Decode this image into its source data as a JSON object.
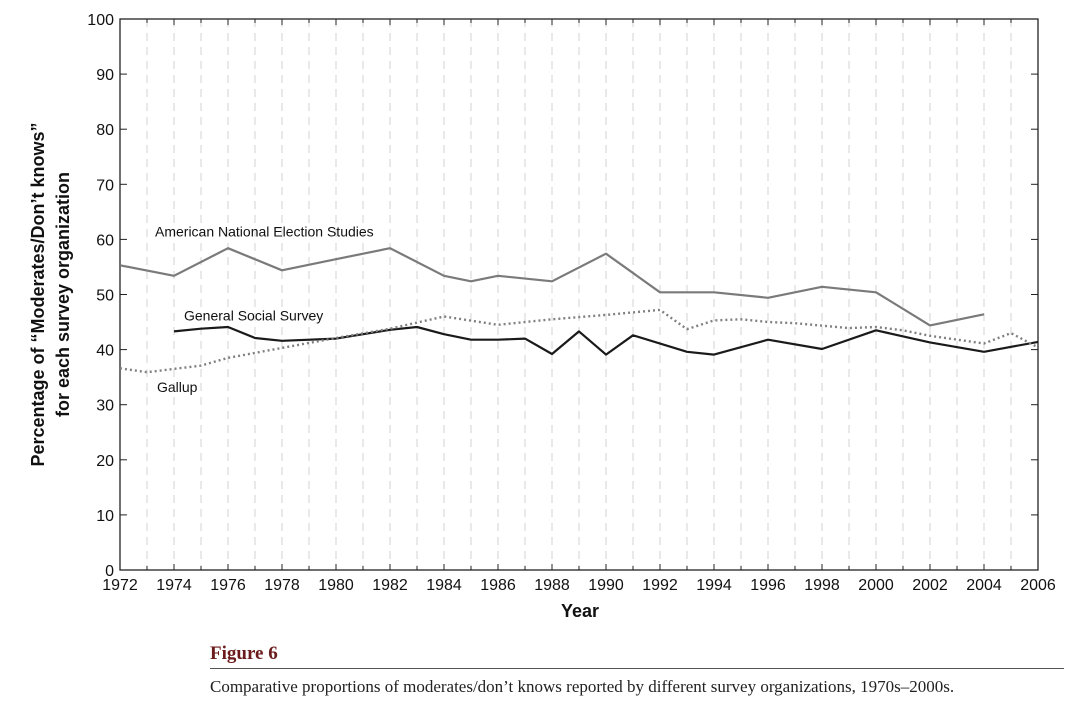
{
  "chart_data": {
    "type": "line",
    "xlabel": "Year",
    "ylabel_lines": [
      "Percentage of “Moderates/Don’t knows”",
      "for each survey organization"
    ],
    "xlim": [
      1972,
      2006
    ],
    "ylim": [
      0,
      100
    ],
    "x_ticks": [
      1972,
      1974,
      1976,
      1978,
      1980,
      1982,
      1984,
      1986,
      1988,
      1990,
      1992,
      1994,
      1996,
      1998,
      2000,
      2002,
      2004,
      2006
    ],
    "y_ticks": [
      0,
      10,
      20,
      30,
      40,
      50,
      60,
      70,
      80,
      90,
      100
    ],
    "grid": "vertical dashed at every year",
    "series": [
      {
        "name": "American National Election Studies",
        "color": "#7a7a7a",
        "style": "solid",
        "points": [
          [
            1972,
            55.3
          ],
          [
            1974,
            53.4
          ],
          [
            1976,
            58.4
          ],
          [
            1978,
            54.4
          ],
          [
            1980,
            56.4
          ],
          [
            1982,
            58.4
          ],
          [
            1984,
            53.4
          ],
          [
            1985,
            52.4
          ],
          [
            1986,
            53.4
          ],
          [
            1988,
            52.4
          ],
          [
            1990,
            57.4
          ],
          [
            1992,
            50.4
          ],
          [
            1994,
            50.4
          ],
          [
            1996,
            49.4
          ],
          [
            1998,
            51.4
          ],
          [
            2000,
            50.4
          ],
          [
            2002,
            44.4
          ],
          [
            2004,
            46.4
          ]
        ]
      },
      {
        "name": "General Social Survey",
        "color": "#1a1a1a",
        "style": "solid",
        "points": [
          [
            1974,
            43.3
          ],
          [
            1975,
            43.8
          ],
          [
            1976,
            44.1
          ],
          [
            1977,
            42.1
          ],
          [
            1978,
            41.6
          ],
          [
            1980,
            42.0
          ],
          [
            1982,
            43.6
          ],
          [
            1983,
            44.1
          ],
          [
            1984,
            42.8
          ],
          [
            1985,
            41.8
          ],
          [
            1986,
            41.8
          ],
          [
            1987,
            42.0
          ],
          [
            1988,
            39.2
          ],
          [
            1989,
            43.3
          ],
          [
            1990,
            39.1
          ],
          [
            1991,
            42.6
          ],
          [
            1993,
            39.6
          ],
          [
            1994,
            39.1
          ],
          [
            1996,
            41.8
          ],
          [
            1998,
            40.1
          ],
          [
            2000,
            43.5
          ],
          [
            2002,
            41.3
          ],
          [
            2004,
            39.6
          ],
          [
            2006,
            41.4
          ]
        ]
      },
      {
        "name": "Gallup",
        "color": "#808080",
        "style": "dotted",
        "points": [
          [
            1972,
            36.6
          ],
          [
            1973,
            35.9
          ],
          [
            1975,
            37.1
          ],
          [
            1976,
            38.5
          ],
          [
            1978,
            40.3
          ],
          [
            1980,
            42.1
          ],
          [
            1982,
            43.8
          ],
          [
            1984,
            46.0
          ],
          [
            1986,
            44.5
          ],
          [
            1988,
            45.5
          ],
          [
            1990,
            46.3
          ],
          [
            1992,
            47.2
          ],
          [
            1993,
            43.7
          ],
          [
            1994,
            45.3
          ],
          [
            1995,
            45.5
          ],
          [
            1996,
            45.0
          ],
          [
            1997,
            44.8
          ],
          [
            1999,
            43.9
          ],
          [
            2000,
            44.1
          ],
          [
            2001,
            43.5
          ],
          [
            2002,
            42.5
          ],
          [
            2004,
            41.1
          ],
          [
            2005,
            43.0
          ],
          [
            2006,
            40.4
          ]
        ]
      }
    ]
  },
  "caption": {
    "title": "Figure 6",
    "text": "Comparative proportions of moderates/don’t knows reported by different survey organizations, 1970s–2000s."
  }
}
